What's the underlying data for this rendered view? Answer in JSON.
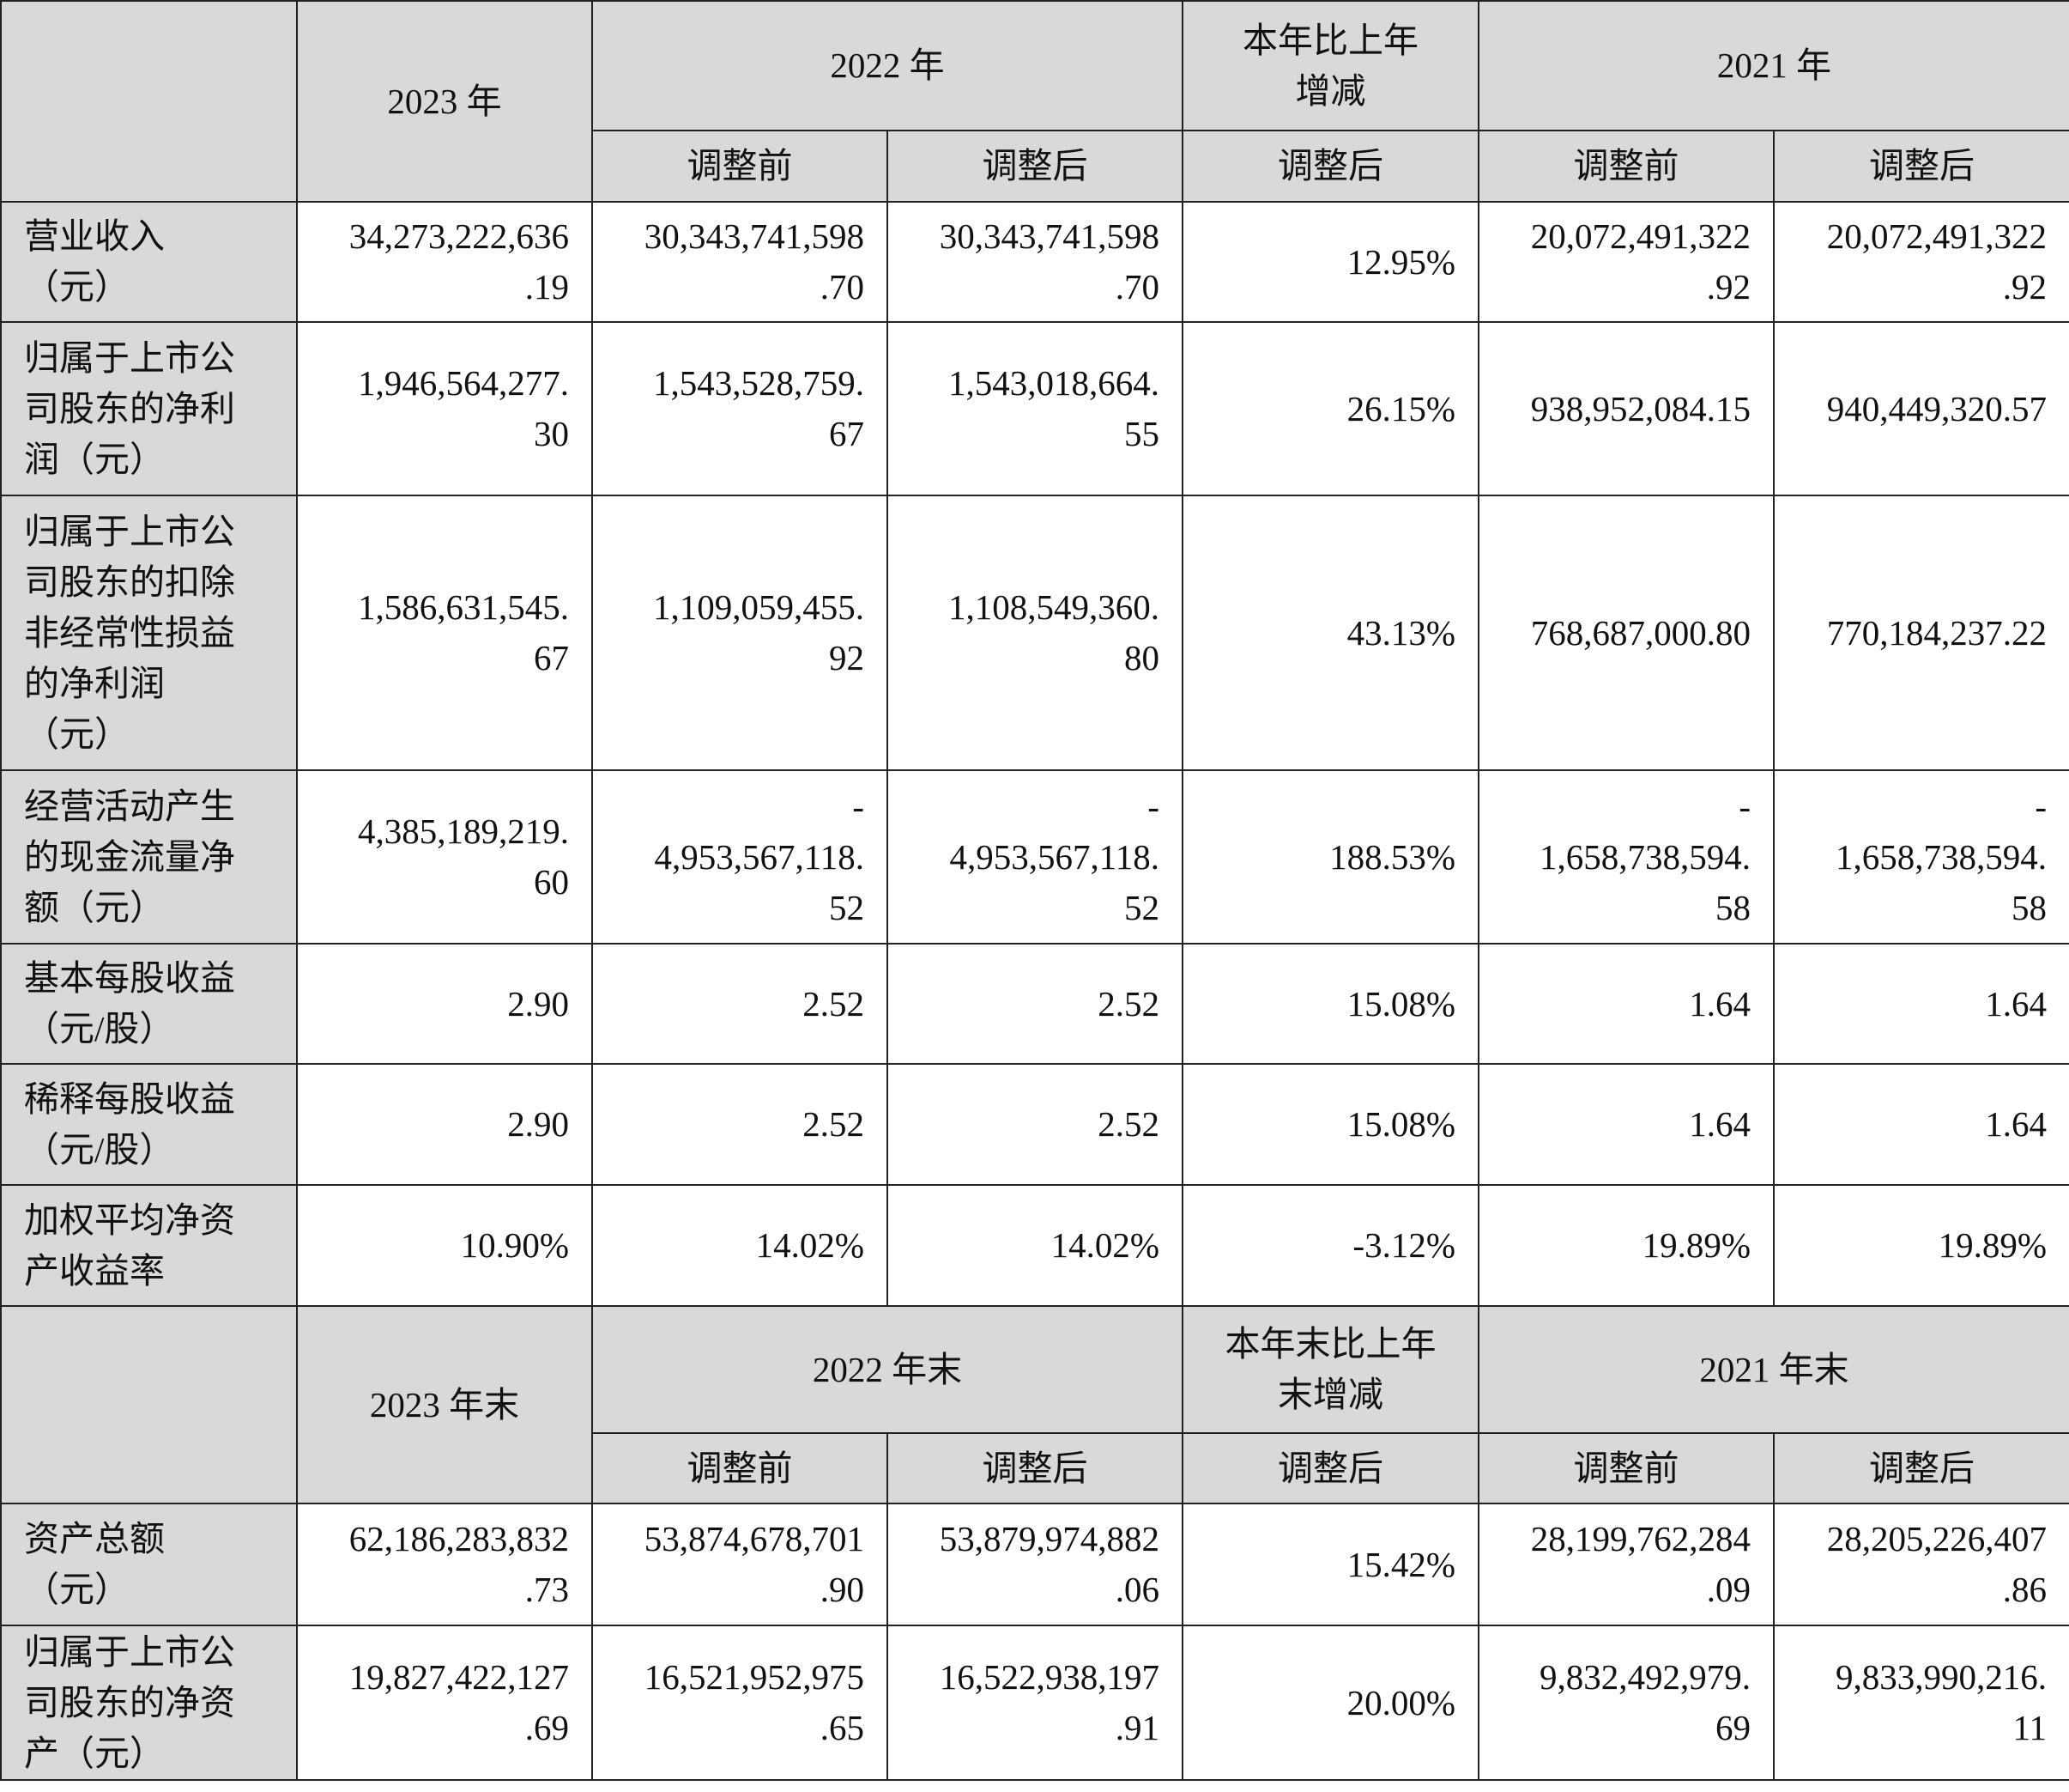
{
  "section1": {
    "header": {
      "year_2023": "2023 年",
      "year_2022": "2022 年",
      "change": [
        "本年比上年",
        "增减"
      ],
      "year_2021": "2021 年",
      "sub": [
        "调整前",
        "调整后",
        "调整后",
        "调整前",
        "调整后"
      ]
    },
    "rows": [
      {
        "label": [
          "营业收入",
          "（元）"
        ],
        "v2023": [
          "34,273,222,636",
          ".19"
        ],
        "v2022a": [
          "30,343,741,598",
          ".70"
        ],
        "v2022b": [
          "30,343,741,598",
          ".70"
        ],
        "chg": [
          "12.95%"
        ],
        "v2021a": [
          "20,072,491,322",
          ".92"
        ],
        "v2021b": [
          "20,072,491,322",
          ".92"
        ]
      },
      {
        "label": [
          "归属于上市公",
          "司股东的净利",
          "润（元）"
        ],
        "v2023": [
          "1,946,564,277.",
          "30"
        ],
        "v2022a": [
          "1,543,528,759.",
          "67"
        ],
        "v2022b": [
          "1,543,018,664.",
          "55"
        ],
        "chg": [
          "26.15%"
        ],
        "v2021a": [
          "938,952,084.15"
        ],
        "v2021b": [
          "940,449,320.57"
        ]
      },
      {
        "label": [
          "归属于上市公",
          "司股东的扣除",
          "非经常性损益",
          "的净利润",
          "（元）"
        ],
        "v2023": [
          "1,586,631,545.",
          "67"
        ],
        "v2022a": [
          "1,109,059,455.",
          "92"
        ],
        "v2022b": [
          "1,108,549,360.",
          "80"
        ],
        "chg": [
          "43.13%"
        ],
        "v2021a": [
          "768,687,000.80"
        ],
        "v2021b": [
          "770,184,237.22"
        ]
      },
      {
        "label": [
          "经营活动产生",
          "的现金流量净",
          "额（元）"
        ],
        "v2023": [
          "4,385,189,219.",
          "60"
        ],
        "v2022a": [
          "-",
          "4,953,567,118.",
          "52"
        ],
        "v2022b": [
          "-",
          "4,953,567,118.",
          "52"
        ],
        "chg": [
          "188.53%"
        ],
        "v2021a": [
          "-",
          "1,658,738,594.",
          "58"
        ],
        "v2021b": [
          "-",
          "1,658,738,594.",
          "58"
        ]
      },
      {
        "label": [
          "基本每股收益",
          "（元/股）"
        ],
        "v2023": [
          "2.90"
        ],
        "v2022a": [
          "2.52"
        ],
        "v2022b": [
          "2.52"
        ],
        "chg": [
          "15.08%"
        ],
        "v2021a": [
          "1.64"
        ],
        "v2021b": [
          "1.64"
        ]
      },
      {
        "label": [
          "稀释每股收益",
          "（元/股）"
        ],
        "v2023": [
          "2.90"
        ],
        "v2022a": [
          "2.52"
        ],
        "v2022b": [
          "2.52"
        ],
        "chg": [
          "15.08%"
        ],
        "v2021a": [
          "1.64"
        ],
        "v2021b": [
          "1.64"
        ]
      },
      {
        "label": [
          "加权平均净资",
          "产收益率"
        ],
        "v2023": [
          "10.90%"
        ],
        "v2022a": [
          "14.02%"
        ],
        "v2022b": [
          "14.02%"
        ],
        "chg": [
          "-3.12%"
        ],
        "v2021a": [
          "19.89%"
        ],
        "v2021b": [
          "19.89%"
        ]
      }
    ]
  },
  "section2": {
    "header": {
      "year_2023": "2023 年末",
      "year_2022": "2022 年末",
      "change": [
        "本年末比上年",
        "末增减"
      ],
      "year_2021": "2021 年末",
      "sub": [
        "调整前",
        "调整后",
        "调整后",
        "调整前",
        "调整后"
      ]
    },
    "rows": [
      {
        "label": [
          "资产总额",
          "（元）"
        ],
        "v2023": [
          "62,186,283,832",
          ".73"
        ],
        "v2022a": [
          "53,874,678,701",
          ".90"
        ],
        "v2022b": [
          "53,879,974,882",
          ".06"
        ],
        "chg": [
          "15.42%"
        ],
        "v2021a": [
          "28,199,762,284",
          ".09"
        ],
        "v2021b": [
          "28,205,226,407",
          ".86"
        ]
      },
      {
        "label": [
          "归属于上市公",
          "司股东的净资",
          "产（元）"
        ],
        "v2023": [
          "19,827,422,127",
          ".69"
        ],
        "v2022a": [
          "16,521,952,975",
          ".65"
        ],
        "v2022b": [
          "16,522,938,197",
          ".91"
        ],
        "chg": [
          "20.00%"
        ],
        "v2021a": [
          "9,832,492,979.",
          "69"
        ],
        "v2021b": [
          "9,833,990,216.",
          "11"
        ]
      }
    ]
  }
}
